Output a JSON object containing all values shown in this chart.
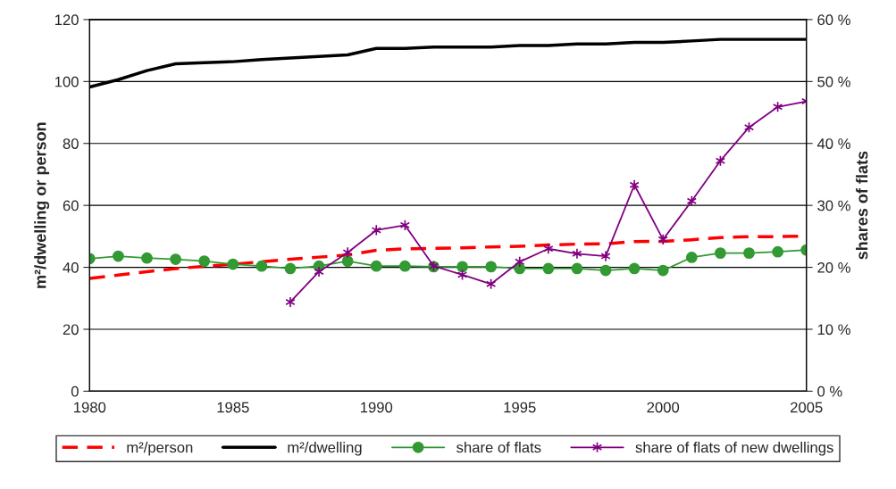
{
  "chart_data": {
    "type": "line",
    "xlabel": null,
    "ylabel": "m²/dwelling or person",
    "y2label": "shares of flats",
    "x": [
      1980,
      1981,
      1982,
      1983,
      1984,
      1985,
      1986,
      1987,
      1988,
      1989,
      1990,
      1991,
      1992,
      1993,
      1994,
      1995,
      1996,
      1997,
      1998,
      1999,
      2000,
      2001,
      2002,
      2003,
      2004,
      2005
    ],
    "xlim": [
      1980,
      2005
    ],
    "xticks": [
      1980,
      1985,
      1990,
      1995,
      2000,
      2005
    ],
    "ylim": [
      0,
      120
    ],
    "yticks": [
      0,
      20,
      40,
      60,
      80,
      100,
      120
    ],
    "y2lim": [
      0,
      60
    ],
    "y2ticks": [
      {
        "value": 0,
        "label": "0 %"
      },
      {
        "value": 10,
        "label": "10 %"
      },
      {
        "value": 20,
        "label": "20 %"
      },
      {
        "value": 30,
        "label": "30 %"
      },
      {
        "value": 40,
        "label": "40 %"
      },
      {
        "value": 50,
        "label": "50 %"
      },
      {
        "value": 60,
        "label": "60 %"
      }
    ],
    "grid": "y",
    "legend": "bottom",
    "series": [
      {
        "name": "m²/person",
        "color": "#ff0000",
        "line_style": "dashed",
        "marker": "none",
        "values": [
          36.4,
          37.5,
          38.6,
          39.6,
          40.3,
          41.0,
          41.8,
          42.6,
          43.3,
          44.0,
          45.5,
          46.0,
          46.1,
          46.3,
          46.6,
          46.8,
          47.2,
          47.5,
          47.6,
          48.3,
          48.4,
          48.9,
          49.6,
          49.9,
          49.9,
          50.1
        ]
      },
      {
        "name": "m²/dwelling",
        "color": "#000000",
        "line_style": "solid",
        "marker": "none",
        "values": [
          98.2,
          100.6,
          103.5,
          105.7,
          106.1,
          106.4,
          107.1,
          107.6,
          108.1,
          108.6,
          110.7,
          110.7,
          111.1,
          111.1,
          111.1,
          111.6,
          111.6,
          112.1,
          112.1,
          112.6,
          112.6,
          113.1,
          113.6,
          113.6,
          113.6,
          113.6
        ]
      },
      {
        "name": "share of flats",
        "color": "#339933",
        "line_style": "solid",
        "marker": "circle",
        "axis": "y2",
        "values": [
          21.4,
          21.8,
          21.5,
          21.3,
          21.0,
          20.5,
          20.2,
          19.8,
          20.2,
          21.0,
          20.2,
          20.2,
          20.1,
          20.1,
          20.1,
          19.8,
          19.8,
          19.8,
          19.5,
          19.8,
          19.5,
          21.6,
          22.3,
          22.3,
          22.5,
          22.8
        ]
      },
      {
        "name": "share of flats of new dwellings",
        "color": "#800080",
        "line_style": "solid",
        "marker": "cross",
        "axis": "y2",
        "values": [
          null,
          null,
          null,
          null,
          null,
          null,
          null,
          14.4,
          19.3,
          22.4,
          26.0,
          26.8,
          20.2,
          18.8,
          17.3,
          20.9,
          23.0,
          22.2,
          21.8,
          33.3,
          24.5,
          30.7,
          37.2,
          42.6,
          45.9,
          46.8
        ]
      }
    ]
  }
}
